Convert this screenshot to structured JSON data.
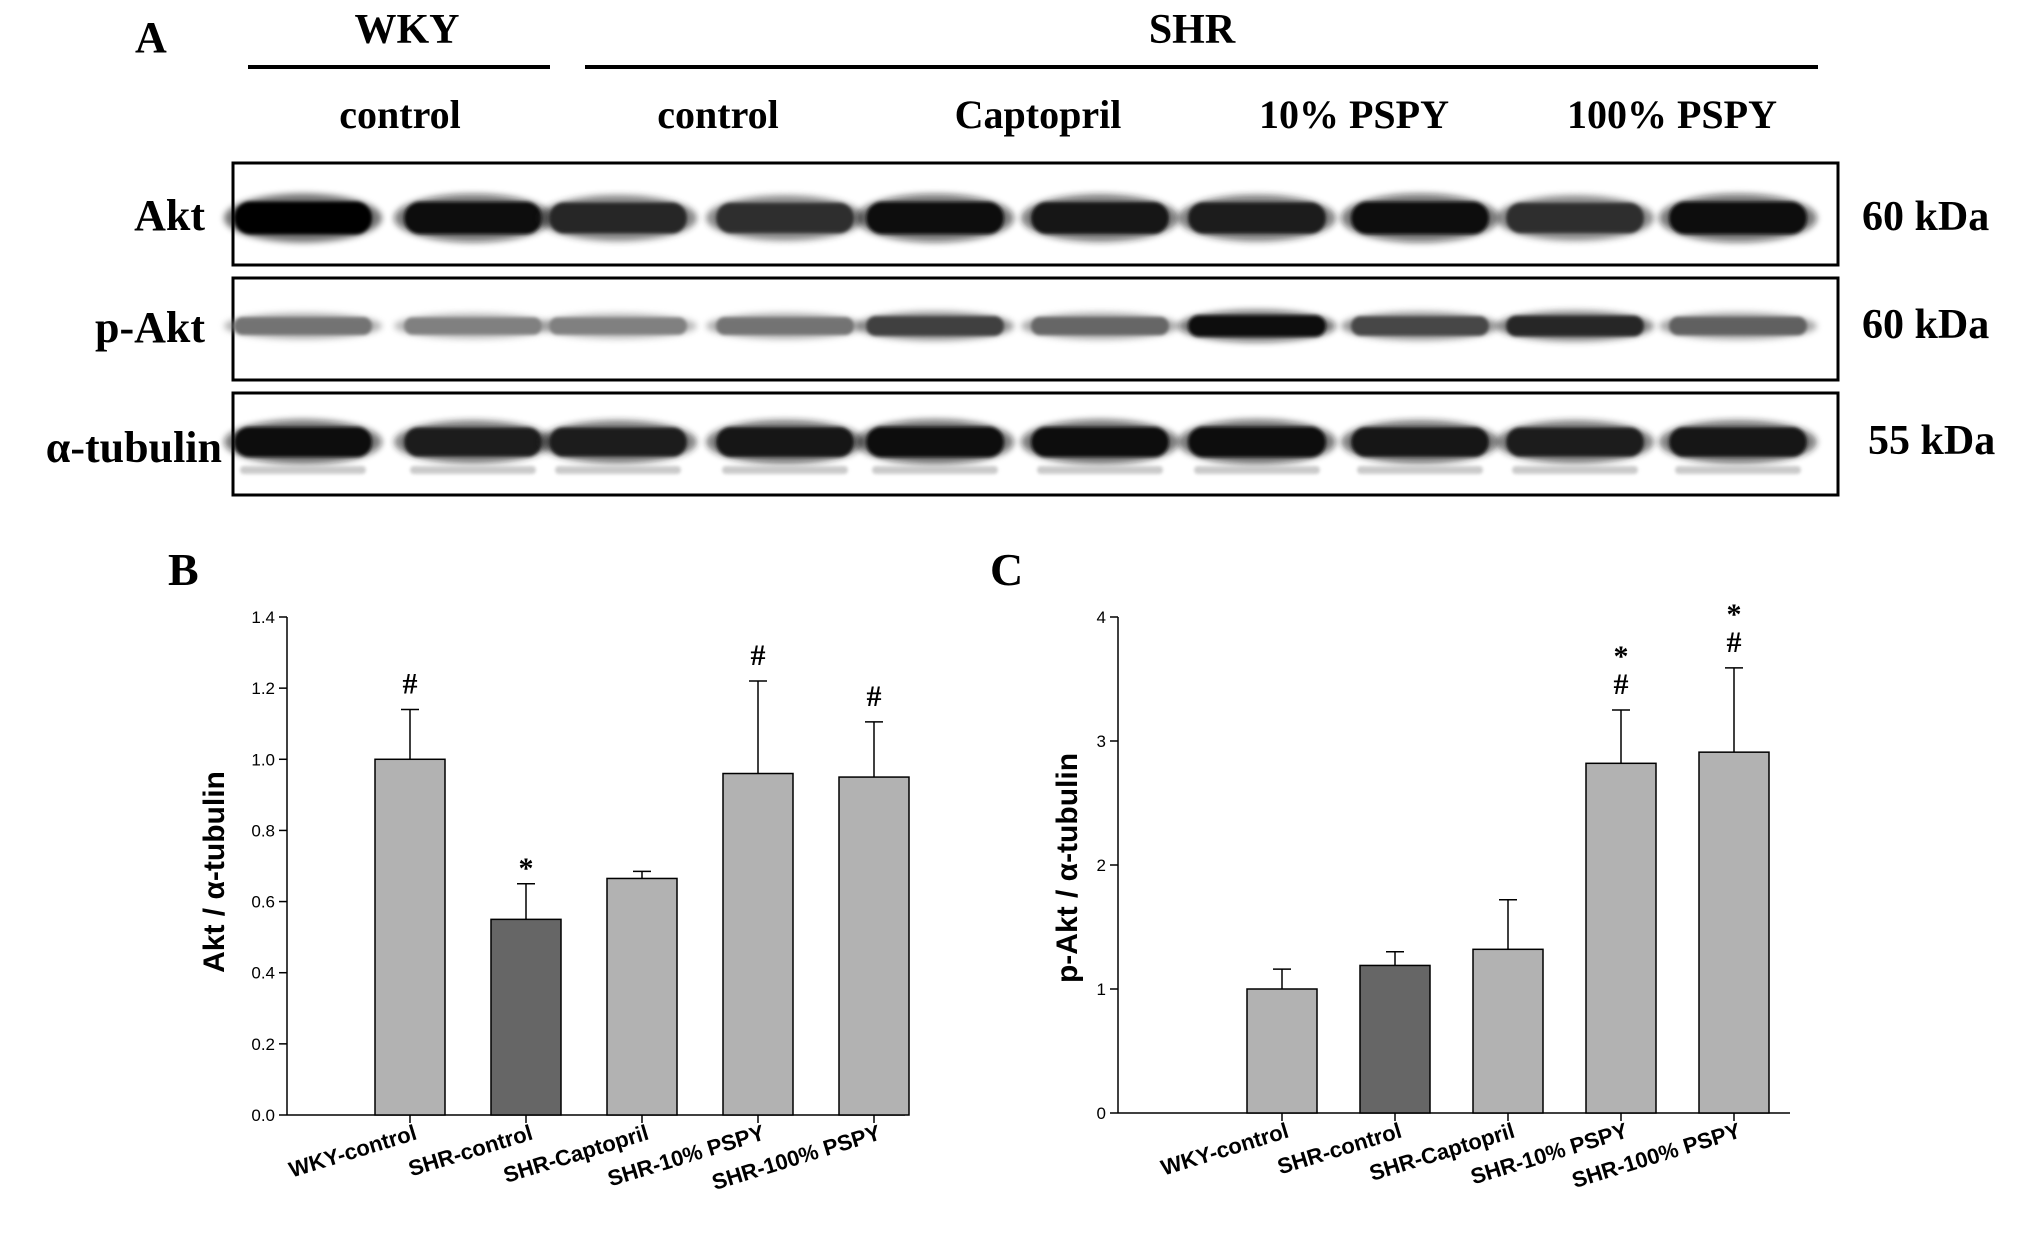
{
  "panel_a": {
    "label": "A",
    "group_headers": [
      {
        "text": "WKY"
      },
      {
        "text": "SHR"
      }
    ],
    "lane_groups": [
      "control",
      "control",
      "Captopril",
      "10% PSPY",
      "100% PSPY"
    ],
    "rows": [
      {
        "name": "Akt",
        "kda": "60 kDa",
        "intensities": [
          0.98,
          0.95,
          0.85,
          0.82,
          0.95,
          0.92,
          0.88,
          0.97,
          0.82,
          0.96
        ]
      },
      {
        "name": "p-Akt",
        "kda": "60 kDa",
        "intensities": [
          0.55,
          0.5,
          0.5,
          0.55,
          0.75,
          0.6,
          0.95,
          0.72,
          0.85,
          0.62
        ]
      },
      {
        "name": "α-tubulin",
        "kda": "55 kDa",
        "intensities": [
          0.95,
          0.88,
          0.88,
          0.92,
          0.97,
          0.95,
          0.97,
          0.9,
          0.88,
          0.9
        ]
      }
    ]
  },
  "chart_data": [
    {
      "panel": "B",
      "type": "bar",
      "categories": [
        "WKY-control",
        "SHR-control",
        "SHR-Captopril",
        "SHR-10% PSPY",
        "SHR-100% PSPY"
      ],
      "values": [
        1.0,
        0.55,
        0.665,
        0.96,
        0.95
      ],
      "errors": [
        0.14,
        0.1,
        0.02,
        0.26,
        0.155
      ],
      "annotations": [
        "#",
        "*",
        "",
        "#",
        "#"
      ],
      "bar_colors": [
        "#b2b2b2",
        "#666666",
        "#b2b2b2",
        "#b2b2b2",
        "#b2b2b2"
      ],
      "ylabel": "Akt / α-tubulin",
      "xlabel": "",
      "ylim": [
        0,
        1.4
      ],
      "yticks": [
        "0.0",
        "0.2",
        "0.4",
        "0.6",
        "0.8",
        "1.0",
        "1.2",
        "1.4"
      ],
      "grid": false
    },
    {
      "panel": "C",
      "type": "bar",
      "categories": [
        "WKY-control",
        "SHR-control",
        "SHR-Captopril",
        "SHR-10% PSPY",
        "SHR-100% PSPY"
      ],
      "values": [
        1.0,
        1.19,
        1.32,
        2.82,
        2.91
      ],
      "errors": [
        0.16,
        0.11,
        0.4,
        0.43,
        0.68
      ],
      "annotations": [
        "",
        "",
        "",
        "*\n#",
        "*\n#"
      ],
      "bar_colors": [
        "#b2b2b2",
        "#666666",
        "#b2b2b2",
        "#b2b2b2",
        "#b2b2b2"
      ],
      "ylabel": "p-Akt / α-tubulin",
      "xlabel": "",
      "ylim": [
        0,
        4
      ],
      "yticks": [
        "0",
        "1",
        "2",
        "3",
        "4"
      ],
      "grid": false
    }
  ]
}
